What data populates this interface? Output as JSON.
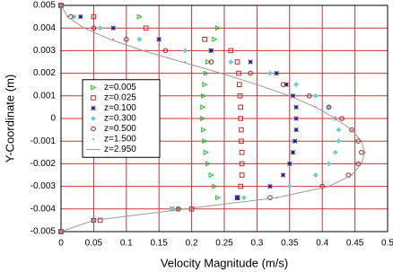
{
  "chart_data": {
    "type": "scatter",
    "x_label": "Velocity Magnitude (m/s)",
    "y_label": "Y-Coordinate (m)",
    "xlim": [
      0,
      0.5
    ],
    "xticks": [
      0,
      0.05,
      0.1,
      0.15,
      0.2,
      0.25,
      0.3,
      0.35,
      0.4,
      0.45,
      0.5
    ],
    "ylim": [
      -0.005,
      0.005
    ],
    "yticks": [
      0.005,
      0.004,
      0.003,
      0.002,
      0.001,
      0,
      -0.001,
      -0.002,
      -0.003,
      -0.004,
      -0.005
    ],
    "grid": true,
    "grid_color": "#cc3333",
    "legend": "center-left",
    "y": [
      0.005,
      0.0045,
      0.004,
      0.0035,
      0.003,
      0.0025,
      0.002,
      0.0015,
      0.001,
      0.0005,
      0,
      -0.0005,
      -0.001,
      -0.0015,
      -0.002,
      -0.0025,
      -0.003,
      -0.0035,
      -0.004,
      -0.0045,
      -0.005
    ],
    "series": [
      {
        "name": "z=0.005",
        "color": "#22c322",
        "marker": "triangle",
        "x": [
          0,
          0.12,
          0.24,
          0.235,
          0.23,
          0.225,
          0.222,
          0.22,
          0.218,
          0.217,
          0.217,
          0.218,
          0.22,
          0.222,
          0.225,
          0.23,
          0.235,
          0.24,
          0.18,
          0.05,
          0
        ]
      },
      {
        "name": "z=0.025",
        "color": "#c82828",
        "marker": "square",
        "x": [
          0,
          0.05,
          0.13,
          0.22,
          0.26,
          0.27,
          0.272,
          0.273,
          0.274,
          0.275,
          0.275,
          0.276,
          0.276,
          0.277,
          0.277,
          0.277,
          0.275,
          0.27,
          0.2,
          0.06,
          0
        ]
      },
      {
        "name": "z=0.100",
        "color": "#1c1c8a",
        "marker": "asterisk",
        "x": [
          0,
          0.03,
          0.08,
          0.15,
          0.23,
          0.29,
          0.33,
          0.345,
          0.355,
          0.36,
          0.36,
          0.36,
          0.358,
          0.355,
          0.35,
          0.34,
          0.32,
          0.27,
          0.17,
          0.05,
          0
        ]
      },
      {
        "name": "z=0.300",
        "color": "#6fcfcf",
        "marker": "diamond",
        "x": [
          0,
          0.02,
          0.06,
          0.12,
          0.19,
          0.26,
          0.32,
          0.36,
          0.39,
          0.41,
          0.42,
          0.425,
          0.425,
          0.42,
          0.41,
          0.39,
          0.35,
          0.28,
          0.17,
          0.05,
          0
        ]
      },
      {
        "name": "z=0.500",
        "color": "#a82020",
        "marker": "circle",
        "x": [
          0,
          0.015,
          0.05,
          0.1,
          0.16,
          0.23,
          0.29,
          0.34,
          0.38,
          0.41,
          0.43,
          0.445,
          0.455,
          0.46,
          0.455,
          0.44,
          0.4,
          0.32,
          0.18,
          0.05,
          0
        ]
      },
      {
        "name": "z=1.500",
        "color": "#cc6699",
        "marker": "dot",
        "x": [
          0,
          0.01,
          0.04,
          0.08,
          0.13,
          0.19,
          0.25,
          0.3,
          0.35,
          0.39,
          0.42,
          0.445,
          0.46,
          0.465,
          0.46,
          0.445,
          0.41,
          0.33,
          0.19,
          0.05,
          0
        ]
      },
      {
        "name": "z=2.950",
        "color": "#9a9a9a",
        "marker": "line",
        "x": [
          0,
          0.01,
          0.035,
          0.075,
          0.125,
          0.185,
          0.245,
          0.3,
          0.35,
          0.39,
          0.42,
          0.445,
          0.46,
          0.465,
          0.46,
          0.445,
          0.41,
          0.33,
          0.19,
          0.05,
          0
        ]
      }
    ]
  }
}
